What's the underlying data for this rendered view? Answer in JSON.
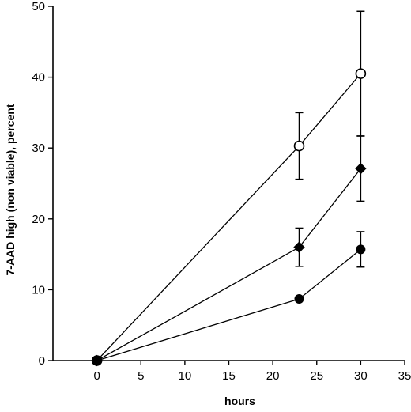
{
  "chart_data": {
    "type": "line",
    "title": "",
    "xlabel": "hours",
    "ylabel": "7-AAD high (non viable), percent",
    "xlim": [
      -5,
      35
    ],
    "ylim": [
      0,
      50
    ],
    "x_ticks": [
      0,
      5,
      10,
      15,
      20,
      25,
      30,
      35
    ],
    "y_ticks": [
      0,
      10,
      20,
      30,
      40,
      50
    ],
    "grid": false,
    "legend": "none",
    "series": [
      {
        "marker": "open-circle",
        "x": [
          0,
          23,
          30
        ],
        "values": [
          0,
          30.3,
          40.5
        ],
        "error": [
          0,
          4.7,
          8.8
        ]
      },
      {
        "marker": "filled-diamond",
        "x": [
          0,
          23,
          30
        ],
        "values": [
          0,
          16.0,
          27.1
        ],
        "error": [
          0,
          2.7,
          4.6
        ]
      },
      {
        "marker": "filled-circle",
        "x": [
          0,
          23,
          30
        ],
        "values": [
          0,
          8.7,
          15.7
        ],
        "error": [
          0,
          0,
          2.5
        ]
      }
    ]
  }
}
